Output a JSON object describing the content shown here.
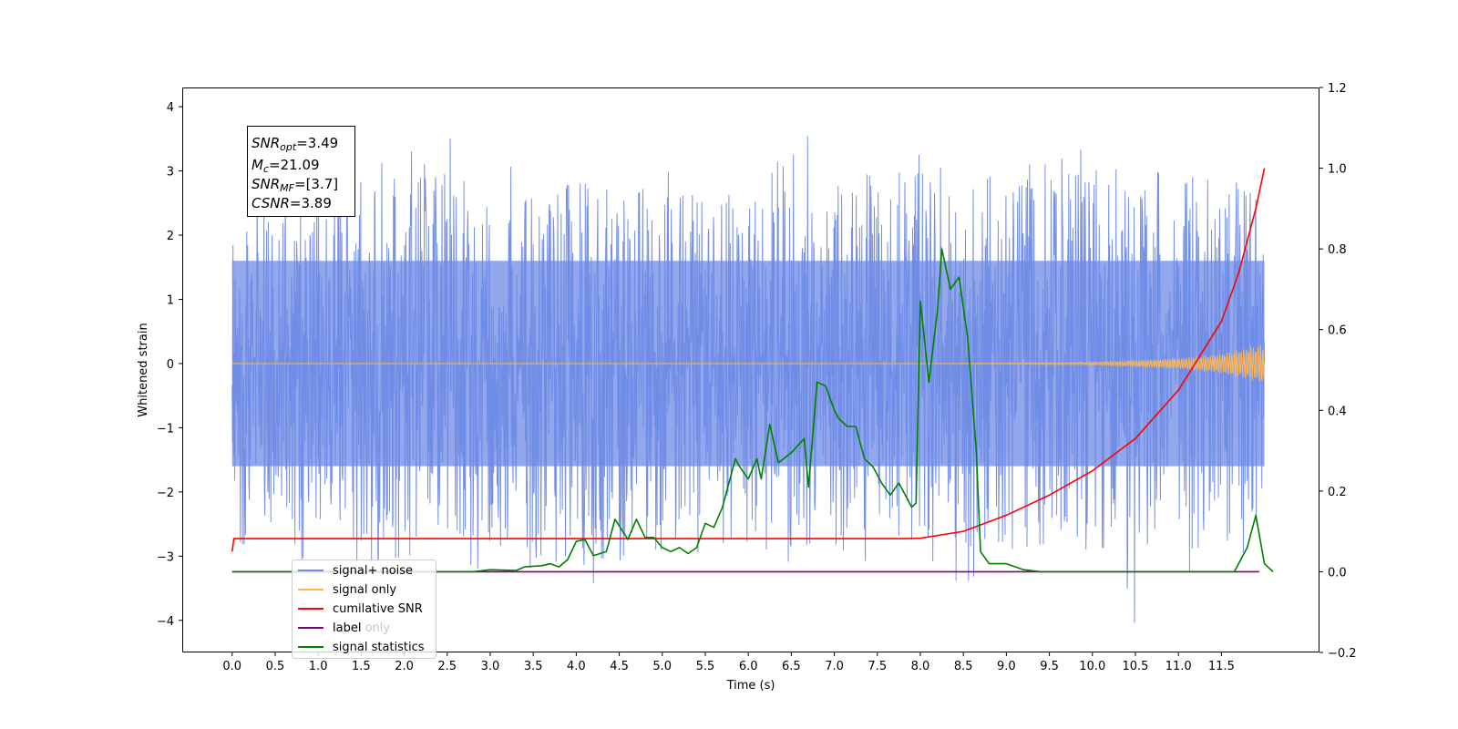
{
  "chart_data": {
    "type": "line",
    "title": "",
    "xlabel": "Time (s)",
    "ylabel": "Whitened strain",
    "xlim": [
      -0.58,
      12.64
    ],
    "ylim": [
      -4.5,
      4.3
    ],
    "y2lim": [
      -0.2,
      1.2
    ],
    "grid": false,
    "legend_position": "bottom-left",
    "x_ticks": [
      "0.0",
      "0.5",
      "1.0",
      "1.5",
      "2.0",
      "2.5",
      "3.0",
      "3.5",
      "4.0",
      "4.5",
      "5.0",
      "5.5",
      "6.0",
      "6.5",
      "7.0",
      "7.5",
      "8.0",
      "8.5",
      "9.0",
      "9.5",
      "10.0",
      "10.5",
      "11.0",
      "11.5"
    ],
    "y_ticks": [
      "4",
      "3",
      "2",
      "1",
      "0",
      "−1",
      "−2",
      "−3",
      "−4"
    ],
    "y2_ticks": [
      "1.2",
      "1.0",
      "0.8",
      "0.6",
      "0.4",
      "0.2",
      "0.0",
      "−0.2"
    ],
    "legend": [
      "signal+ noise",
      "signal only",
      "cumilative SNR",
      "label",
      "label only",
      "signal statistics"
    ],
    "annotations": {
      "snr_opt": {
        "main": "SNR",
        "sub": "opt",
        "value": "=3.49"
      },
      "mc": {
        "main": "M",
        "sub": "c",
        "value": "=21.09"
      },
      "snr_mf": {
        "main": "SNR",
        "sub": "MF",
        "value": "=[3.7]"
      },
      "csnr": {
        "main": "CSNR",
        "value": "=3.89"
      }
    },
    "series": [
      {
        "name": "signal+ noise",
        "color": "#6e8ae6",
        "axis": "left",
        "envelope_points": [
          [
            0.0,
            2.4,
            -2.4
          ],
          [
            0.1,
            2.1,
            -2.8
          ],
          [
            0.3,
            3.0,
            -2.9
          ],
          [
            0.65,
            2.9,
            -3.25
          ],
          [
            0.85,
            2.5,
            -3.0
          ],
          [
            1.5,
            3.0,
            -3.1
          ],
          [
            2.05,
            3.3,
            -3.0
          ],
          [
            2.4,
            3.35,
            -2.7
          ],
          [
            2.5,
            3.65,
            -2.9
          ],
          [
            2.85,
            2.2,
            -3.2
          ],
          [
            3.3,
            3.2,
            -2.6
          ],
          [
            3.5,
            2.5,
            -3.3
          ],
          [
            4.0,
            3.25,
            -2.9
          ],
          [
            4.25,
            2.8,
            -3.55
          ],
          [
            4.6,
            2.5,
            -2.9
          ],
          [
            5.0,
            3.0,
            -2.9
          ],
          [
            5.5,
            2.9,
            -3.15
          ],
          [
            5.9,
            2.5,
            -2.8
          ],
          [
            6.3,
            3.0,
            -3.45
          ],
          [
            6.55,
            3.9,
            -2.9
          ],
          [
            6.9,
            3.0,
            -2.7
          ],
          [
            7.3,
            3.1,
            -3.1
          ],
          [
            7.55,
            3.35,
            -3.0
          ],
          [
            7.8,
            3.4,
            -2.6
          ],
          [
            8.3,
            3.0,
            -3.3
          ],
          [
            8.5,
            2.6,
            -3.45
          ],
          [
            9.0,
            3.1,
            -2.9
          ],
          [
            9.5,
            3.1,
            -2.8
          ],
          [
            9.9,
            3.35,
            -2.9
          ],
          [
            10.3,
            3.0,
            -2.85
          ],
          [
            10.5,
            3.1,
            -4.1
          ],
          [
            10.7,
            3.05,
            -2.7
          ],
          [
            11.0,
            2.7,
            -3.45
          ],
          [
            11.4,
            3.2,
            -2.8
          ],
          [
            11.6,
            3.65,
            -3.1
          ],
          [
            11.8,
            3.1,
            -2.9
          ],
          [
            12.0,
            2.0,
            -2.1
          ]
        ]
      },
      {
        "name": "signal only",
        "color": "#ffb74d",
        "axis": "left",
        "envelope_points": [
          [
            0.0,
            0.0
          ],
          [
            8.0,
            0.0
          ],
          [
            10.0,
            0.02
          ],
          [
            11.0,
            0.08
          ],
          [
            11.5,
            0.15
          ],
          [
            12.0,
            0.3
          ]
        ]
      },
      {
        "name": "cumilative SNR",
        "color": "#ff0000",
        "axis": "right",
        "points": [
          [
            0.0,
            0.05
          ],
          [
            0.02,
            0.082
          ],
          [
            7.8,
            0.082
          ],
          [
            8.0,
            0.083
          ],
          [
            8.5,
            0.1
          ],
          [
            9.0,
            0.14
          ],
          [
            9.5,
            0.19
          ],
          [
            10.0,
            0.25
          ],
          [
            10.5,
            0.33
          ],
          [
            11.0,
            0.45
          ],
          [
            11.5,
            0.62
          ],
          [
            11.7,
            0.74
          ],
          [
            11.9,
            0.9
          ],
          [
            12.0,
            1.0
          ]
        ]
      },
      {
        "name": "label",
        "color": "#800080",
        "axis": "right",
        "points": [
          [
            0.0,
            0.0
          ],
          [
            11.94,
            0.0
          ]
        ]
      },
      {
        "name": "signal statistics",
        "color": "#008000",
        "axis": "right",
        "points": [
          [
            0.0,
            0.0
          ],
          [
            2.8,
            0.0
          ],
          [
            3.0,
            0.005
          ],
          [
            3.3,
            0.003
          ],
          [
            3.4,
            0.012
          ],
          [
            3.6,
            0.015
          ],
          [
            3.7,
            0.02
          ],
          [
            3.8,
            0.012
          ],
          [
            3.9,
            0.03
          ],
          [
            4.0,
            0.075
          ],
          [
            4.1,
            0.08
          ],
          [
            4.2,
            0.04
          ],
          [
            4.35,
            0.05
          ],
          [
            4.45,
            0.13
          ],
          [
            4.6,
            0.08
          ],
          [
            4.7,
            0.13
          ],
          [
            4.8,
            0.085
          ],
          [
            4.9,
            0.085
          ],
          [
            5.0,
            0.06
          ],
          [
            5.1,
            0.05
          ],
          [
            5.2,
            0.06
          ],
          [
            5.3,
            0.045
          ],
          [
            5.4,
            0.06
          ],
          [
            5.5,
            0.12
          ],
          [
            5.6,
            0.11
          ],
          [
            5.7,
            0.16
          ],
          [
            5.8,
            0.24
          ],
          [
            5.85,
            0.28
          ],
          [
            5.9,
            0.26
          ],
          [
            6.0,
            0.23
          ],
          [
            6.1,
            0.28
          ],
          [
            6.15,
            0.23
          ],
          [
            6.25,
            0.365
          ],
          [
            6.35,
            0.27
          ],
          [
            6.5,
            0.295
          ],
          [
            6.65,
            0.33
          ],
          [
            6.7,
            0.21
          ],
          [
            6.8,
            0.47
          ],
          [
            6.9,
            0.46
          ],
          [
            7.0,
            0.4
          ],
          [
            7.05,
            0.38
          ],
          [
            7.15,
            0.36
          ],
          [
            7.25,
            0.36
          ],
          [
            7.35,
            0.28
          ],
          [
            7.45,
            0.26
          ],
          [
            7.55,
            0.22
          ],
          [
            7.65,
            0.19
          ],
          [
            7.75,
            0.22
          ],
          [
            7.9,
            0.16
          ],
          [
            7.95,
            0.17
          ],
          [
            8.0,
            0.67
          ],
          [
            8.1,
            0.47
          ],
          [
            8.2,
            0.65
          ],
          [
            8.25,
            0.8
          ],
          [
            8.35,
            0.7
          ],
          [
            8.45,
            0.73
          ],
          [
            8.55,
            0.58
          ],
          [
            8.65,
            0.3
          ],
          [
            8.7,
            0.05
          ],
          [
            8.8,
            0.02
          ],
          [
            9.0,
            0.02
          ],
          [
            9.2,
            0.005
          ],
          [
            9.4,
            0.0
          ],
          [
            11.65,
            0.0
          ],
          [
            11.8,
            0.06
          ],
          [
            11.9,
            0.14
          ],
          [
            12.0,
            0.02
          ],
          [
            12.1,
            0.0
          ]
        ]
      }
    ]
  }
}
